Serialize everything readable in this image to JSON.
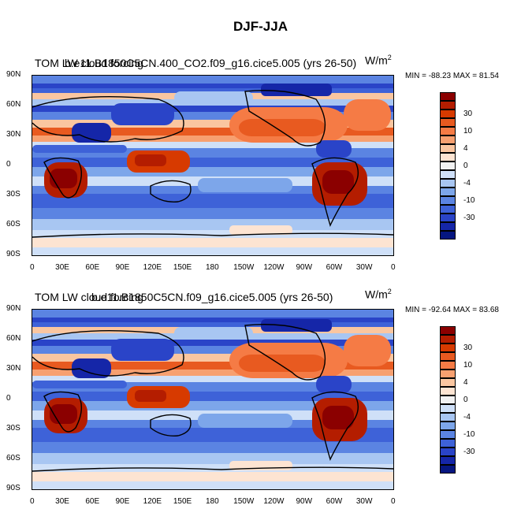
{
  "title": "DJF-JJA",
  "units": "W/m",
  "units_exp": "2",
  "lat_labels": [
    "90N",
    "60N",
    "30N",
    "0",
    "30S",
    "60S",
    "90S"
  ],
  "lon_labels": [
    "0",
    "30E",
    "60E",
    "90E",
    "120E",
    "150E",
    "180",
    "150W",
    "120W",
    "90W",
    "60W",
    "30W",
    "0"
  ],
  "colorbar": {
    "labels": [
      "30",
      "10",
      "4",
      "0",
      "-4",
      "-10",
      "-30"
    ],
    "colors": [
      "#8b0000",
      "#b41d00",
      "#d73a00",
      "#e85a20",
      "#f57b45",
      "#f7a070",
      "#fac6a0",
      "#fde4d2",
      "#f2f2f2",
      "#cfe0f8",
      "#a8c6f2",
      "#7da6ea",
      "#5b84e2",
      "#3e62d8",
      "#2a44c8",
      "#1526a8",
      "#061680"
    ]
  },
  "panels": [
    {
      "title_a": "TOM LW cloud forcing",
      "title_b": "b.e11.B1850C5CN.400_CO2.f09_g16.cice5.005 (yrs 26-50)",
      "minmax": "MIN = -88.23 MAX =  81.54"
    },
    {
      "title_a": "TOM LW cloud forcing",
      "title_b": "b.e11.B1850C5CN.f09_g16.cice5.005 (yrs 26-50)",
      "minmax": "MIN = -92.64 MAX =  83.68"
    }
  ]
}
